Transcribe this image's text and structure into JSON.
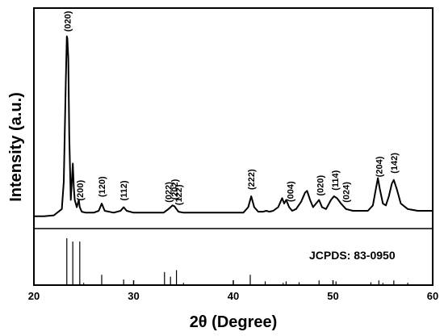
{
  "chart_data": {
    "type": "line",
    "xlabel": "2θ (Degree)",
    "ylabel": "Intensity (a.u.)",
    "xlim": [
      20,
      60
    ],
    "x_ticks": [
      20,
      30,
      40,
      50,
      60
    ],
    "y_ticks_labeled": false,
    "grid": false,
    "legend": "none",
    "series": [
      {
        "x": [
          20,
          21,
          22,
          22.8,
          23.0,
          23.2,
          23.3,
          23.35,
          23.45,
          23.55,
          23.7,
          23.9,
          24.0,
          24.1,
          24.3,
          24.5,
          24.6,
          24.8,
          25.2,
          26,
          26.5,
          26.8,
          27.1,
          28,
          28.7,
          29.0,
          29.3,
          30,
          31,
          32,
          33,
          33.5,
          33.9,
          34.1,
          34.3,
          34.5,
          35,
          36,
          38,
          40,
          41,
          41.5,
          41.8,
          42.1,
          42.5,
          43,
          43.3,
          43.6,
          44,
          44.5,
          44.9,
          45.1,
          45.3,
          45.6,
          45.9,
          46.3,
          46.8,
          47.2,
          47.4,
          47.7,
          48.0,
          48.3,
          48.6,
          48.9,
          49.3,
          49.8,
          50.1,
          50.4,
          50.8,
          51.3,
          52,
          53,
          53.5,
          54.0,
          54.3,
          54.5,
          54.7,
          55.0,
          55.3,
          55.6,
          55.9,
          56.1,
          56.4,
          56.8,
          57.5,
          58.5,
          60
        ],
        "values": [
          1,
          1,
          1.5,
          5,
          20,
          75,
          100,
          99,
          88,
          45,
          10,
          30,
          17,
          10,
          6,
          10,
          6,
          3.5,
          3,
          3,
          4,
          8,
          4,
          3,
          4,
          6,
          4,
          3,
          3,
          3,
          3,
          5,
          7,
          6.5,
          5,
          3.5,
          3,
          3,
          3,
          3,
          3,
          6,
          12,
          6,
          3.5,
          3.5,
          4,
          3.5,
          4,
          6,
          11,
          8,
          10,
          6,
          4,
          5,
          9,
          14,
          15,
          10,
          6,
          8,
          10,
          6,
          5,
          10,
          12,
          11,
          8,
          5,
          4,
          4,
          4,
          7,
          16,
          22,
          16,
          8,
          7,
          12,
          19,
          21,
          16,
          8,
          5,
          4,
          4
        ]
      }
    ],
    "peak_labels": [
      {
        "text": "(020)",
        "x": 23.35
      },
      {
        "text": "(200)",
        "x": 24.6
      },
      {
        "text": "(120)",
        "x": 26.8
      },
      {
        "text": "(112)",
        "x": 29.0
      },
      {
        "text": "(022)",
        "x": 33.5
      },
      {
        "text": "(202)",
        "x": 34.1
      },
      {
        "text": "(122)",
        "x": 34.5
      },
      {
        "text": "(222)",
        "x": 41.8
      },
      {
        "text": "(004)",
        "x": 45.7
      },
      {
        "text": "(020)",
        "x": 48.7
      },
      {
        "text": "(114)",
        "x": 50.2
      },
      {
        "text": "(024)",
        "x": 51.3
      },
      {
        "text": "(204)",
        "x": 54.6
      },
      {
        "text": "(142)",
        "x": 56.1
      }
    ],
    "reference": {
      "label": "JCPDS: 83-0950",
      "lines": [
        {
          "x": 23.3,
          "h": 1.0
        },
        {
          "x": 23.9,
          "h": 0.93
        },
        {
          "x": 24.6,
          "h": 0.93
        },
        {
          "x": 26.8,
          "h": 0.22
        },
        {
          "x": 29.0,
          "h": 0.12
        },
        {
          "x": 33.1,
          "h": 0.28
        },
        {
          "x": 33.7,
          "h": 0.18
        },
        {
          "x": 34.3,
          "h": 0.32
        },
        {
          "x": 41.7,
          "h": 0.22
        },
        {
          "x": 43.2,
          "h": 0.08
        },
        {
          "x": 45.3,
          "h": 0.08
        },
        {
          "x": 46.6,
          "h": 0.06
        },
        {
          "x": 48.6,
          "h": 0.1
        },
        {
          "x": 50.3,
          "h": 0.08
        },
        {
          "x": 53.8,
          "h": 0.06
        },
        {
          "x": 54.6,
          "h": 0.1
        },
        {
          "x": 56.1,
          "h": 0.1
        },
        {
          "x": 57.5,
          "h": 0.05
        }
      ]
    }
  }
}
